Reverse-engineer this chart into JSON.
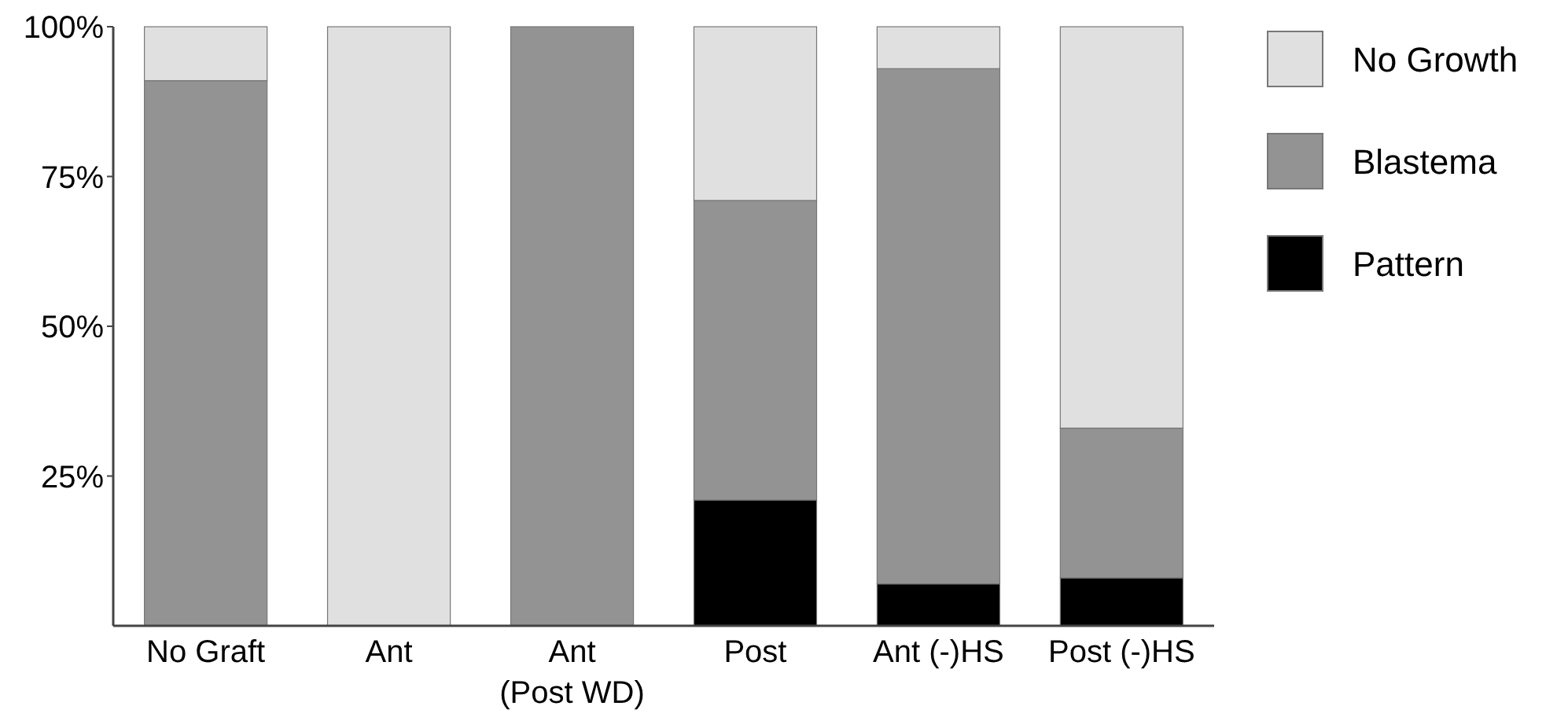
{
  "chart_data": {
    "type": "bar",
    "stacked": true,
    "categories": [
      "No Graft",
      "Ant",
      "Ant\n(Post WD)",
      "Post",
      "Ant (-)HS",
      "Post (-)HS"
    ],
    "series": [
      {
        "name": "Pattern",
        "color": "#000000",
        "values": [
          0,
          0,
          0,
          21,
          7,
          8
        ]
      },
      {
        "name": "Blastema",
        "color": "#939393",
        "values": [
          91,
          0,
          100,
          50,
          86,
          25
        ]
      },
      {
        "name": "No Growth",
        "color": "#e0e0e0",
        "values": [
          9,
          100,
          0,
          29,
          7,
          67
        ]
      }
    ],
    "ylim": [
      0,
      100
    ],
    "yticks": [
      {
        "value": 25,
        "label": "25%"
      },
      {
        "value": 50,
        "label": "50%"
      },
      {
        "value": 75,
        "label": "75%"
      },
      {
        "value": 100,
        "label": "100%"
      }
    ],
    "legend": "right",
    "grid": false
  }
}
